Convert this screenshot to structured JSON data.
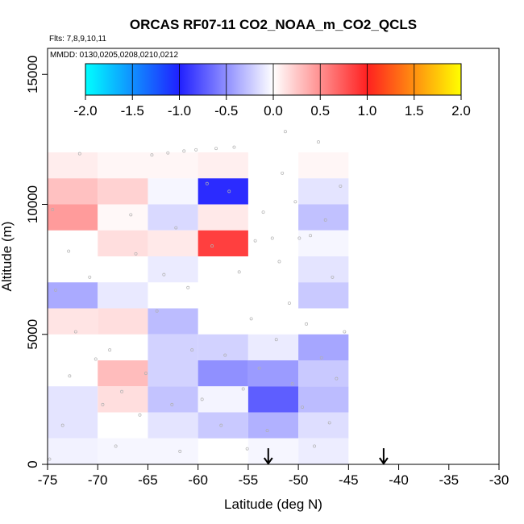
{
  "chart_data": {
    "type": "heatmap",
    "title": "ORCAS RF07-11 CO2_NOAA_m_CO2_QCLS",
    "flights_note": "Flts: 7,8,9,10,11",
    "dates_note": "MMDD: 0130,0205,0208,0210,0212",
    "xlabel": "Latitude (deg N)",
    "ylabel": "Altitude (m)",
    "xlim": [
      -75,
      -30
    ],
    "ylim": [
      0,
      16000
    ],
    "x_ticks": [
      -75,
      -70,
      -65,
      -60,
      -55,
      -50,
      -45,
      -40,
      -35,
      -30
    ],
    "x_tick_labels": [
      "-75",
      "-70",
      "-65",
      "-60",
      "-55",
      "-50",
      "-45",
      "-40",
      "-35",
      "-30"
    ],
    "y_ticks": [
      0,
      5000,
      10000,
      15000
    ],
    "y_tick_labels": [
      "0",
      "5000",
      "10000",
      "15000"
    ],
    "colorbar": {
      "min": -2.0,
      "max": 2.0,
      "ticks": [
        -2.0,
        -1.5,
        -1.0,
        -0.5,
        0.0,
        0.5,
        1.0,
        1.5,
        2.0
      ],
      "tick_labels": [
        "-2.0",
        "-1.5",
        "-1.0",
        "-0.5",
        "0.0",
        "0.5",
        "1.0",
        "1.5",
        "2.0"
      ],
      "stops": [
        {
          "v": -2.0,
          "color": "#00ffff"
        },
        {
          "v": -1.0,
          "color": "#2020ff"
        },
        {
          "v": 0.0,
          "color": "#ffffff"
        },
        {
          "v": 1.0,
          "color": "#ff2020"
        },
        {
          "v": 2.0,
          "color": "#ffff00"
        }
      ]
    },
    "cell_size": {
      "lat": 5,
      "alt": 1000
    },
    "cells": [
      {
        "lat": -75,
        "alt": 11000,
        "value": 0.08
      },
      {
        "lat": -70,
        "alt": 11000,
        "value": 0.04
      },
      {
        "lat": -65,
        "alt": 11000,
        "value": 0.04
      },
      {
        "lat": -60,
        "alt": 11000,
        "value": 0.07
      },
      {
        "lat": -50,
        "alt": 11000,
        "value": 0.04
      },
      {
        "lat": -75,
        "alt": 10000,
        "value": 0.28
      },
      {
        "lat": -70,
        "alt": 10000,
        "value": 0.2
      },
      {
        "lat": -65,
        "alt": 10000,
        "value": -0.04
      },
      {
        "lat": -60,
        "alt": 10000,
        "value": -0.95
      },
      {
        "lat": -50,
        "alt": 10000,
        "value": -0.12
      },
      {
        "lat": -75,
        "alt": 9000,
        "value": 0.45
      },
      {
        "lat": -70,
        "alt": 9000,
        "value": 0.03
      },
      {
        "lat": -65,
        "alt": 9000,
        "value": -0.17
      },
      {
        "lat": -60,
        "alt": 9000,
        "value": 0.1
      },
      {
        "lat": -50,
        "alt": 9000,
        "value": -0.28
      },
      {
        "lat": -70,
        "alt": 8000,
        "value": 0.15
      },
      {
        "lat": -65,
        "alt": 8000,
        "value": 0.1
      },
      {
        "lat": -60,
        "alt": 8000,
        "value": 0.86
      },
      {
        "lat": -50,
        "alt": 8000,
        "value": -0.04
      },
      {
        "lat": -65,
        "alt": 7000,
        "value": -0.09
      },
      {
        "lat": -50,
        "alt": 7000,
        "value": -0.12
      },
      {
        "lat": -75,
        "alt": 6000,
        "value": -0.38
      },
      {
        "lat": -70,
        "alt": 6000,
        "value": -0.1
      },
      {
        "lat": -50,
        "alt": 6000,
        "value": -0.24
      },
      {
        "lat": -75,
        "alt": 5000,
        "value": 0.12
      },
      {
        "lat": -70,
        "alt": 5000,
        "value": 0.15
      },
      {
        "lat": -65,
        "alt": 5000,
        "value": -0.3
      },
      {
        "lat": -65,
        "alt": 4000,
        "value": -0.2
      },
      {
        "lat": -60,
        "alt": 4000,
        "value": -0.2
      },
      {
        "lat": -55,
        "alt": 4000,
        "value": -0.09
      },
      {
        "lat": -50,
        "alt": 4000,
        "value": -0.4
      },
      {
        "lat": -70,
        "alt": 3000,
        "value": 0.3
      },
      {
        "lat": -65,
        "alt": 3000,
        "value": -0.2
      },
      {
        "lat": -60,
        "alt": 3000,
        "value": -0.5
      },
      {
        "lat": -55,
        "alt": 3000,
        "value": -0.45
      },
      {
        "lat": -50,
        "alt": 3000,
        "value": -0.24
      },
      {
        "lat": -75,
        "alt": 2000,
        "value": -0.12
      },
      {
        "lat": -70,
        "alt": 2000,
        "value": 0.15
      },
      {
        "lat": -65,
        "alt": 2000,
        "value": -0.27
      },
      {
        "lat": -60,
        "alt": 2000,
        "value": -0.05
      },
      {
        "lat": -55,
        "alt": 2000,
        "value": -0.72
      },
      {
        "lat": -50,
        "alt": 2000,
        "value": -0.3
      },
      {
        "lat": -75,
        "alt": 1000,
        "value": -0.12
      },
      {
        "lat": -70,
        "alt": 1000,
        "value": 0.0
      },
      {
        "lat": -65,
        "alt": 1000,
        "value": -0.12
      },
      {
        "lat": -60,
        "alt": 1000,
        "value": -0.24
      },
      {
        "lat": -55,
        "alt": 1000,
        "value": -0.35
      },
      {
        "lat": -50,
        "alt": 1000,
        "value": -0.15
      },
      {
        "lat": -75,
        "alt": 0,
        "value": -0.06
      },
      {
        "lat": -70,
        "alt": 0,
        "value": -0.04
      },
      {
        "lat": -65,
        "alt": 0,
        "value": -0.04
      },
      {
        "lat": -55,
        "alt": 0,
        "value": -0.04
      },
      {
        "lat": -50,
        "alt": 0,
        "value": -0.08
      }
    ],
    "sample_points": [
      [
        -74.8,
        200
      ],
      [
        -73.5,
        1500
      ],
      [
        -72.8,
        3400
      ],
      [
        -72.2,
        5100
      ],
      [
        -74.2,
        6700
      ],
      [
        -72.9,
        8200
      ],
      [
        -71.8,
        11950
      ],
      [
        -70.2,
        4050
      ],
      [
        -69.5,
        2300
      ],
      [
        -68.8,
        4400
      ],
      [
        -68.2,
        700
      ],
      [
        -67.6,
        2800
      ],
      [
        -66.7,
        9600
      ],
      [
        -66.2,
        8100
      ],
      [
        -65.8,
        1900
      ],
      [
        -65.2,
        3500
      ],
      [
        -64.6,
        11900
      ],
      [
        -64.1,
        5900
      ],
      [
        -63.4,
        7300
      ],
      [
        -63.0,
        11980
      ],
      [
        -62.6,
        2300
      ],
      [
        -62.2,
        9100
      ],
      [
        -61.8,
        500
      ],
      [
        -61.4,
        12050
      ],
      [
        -61.0,
        6800
      ],
      [
        -60.6,
        4400
      ],
      [
        -60.2,
        12100
      ],
      [
        -59.6,
        2500
      ],
      [
        -59.1,
        10800
      ],
      [
        -58.6,
        8400
      ],
      [
        -58.2,
        12150
      ],
      [
        -57.7,
        1500
      ],
      [
        -57.3,
        4200
      ],
      [
        -56.9,
        10500
      ],
      [
        -56.4,
        12200
      ],
      [
        -55.9,
        7400
      ],
      [
        -55.5,
        2900
      ],
      [
        -55.1,
        600
      ],
      [
        -54.7,
        5600
      ],
      [
        -54.3,
        8600
      ],
      [
        -53.9,
        3700
      ],
      [
        -53.5,
        9700
      ],
      [
        -53.1,
        1300
      ],
      [
        -52.6,
        8700
      ],
      [
        -52.2,
        4800
      ],
      [
        -51.9,
        7800
      ],
      [
        -51.6,
        11200
      ],
      [
        -51.3,
        12800
      ],
      [
        -50.9,
        6200
      ],
      [
        -50.6,
        3100
      ],
      [
        -50.3,
        10100
      ],
      [
        -49.9,
        8700
      ],
      [
        -49.6,
        2200
      ],
      [
        -49.2,
        5400
      ],
      [
        -48.8,
        8800
      ],
      [
        -48.4,
        700
      ],
      [
        -48.0,
        12400
      ],
      [
        -47.7,
        4100
      ],
      [
        -47.3,
        9400
      ],
      [
        -46.9,
        1600
      ],
      [
        -46.6,
        7200
      ],
      [
        -46.2,
        3300
      ],
      [
        -45.8,
        10700
      ],
      [
        -45.4,
        5100
      ],
      [
        -74.5,
        9800
      ],
      [
        -70.8,
        7200
      ]
    ],
    "arrows": [
      {
        "lat": -53,
        "alt": 0
      },
      {
        "lat": -41.5,
        "alt": 0
      }
    ]
  }
}
